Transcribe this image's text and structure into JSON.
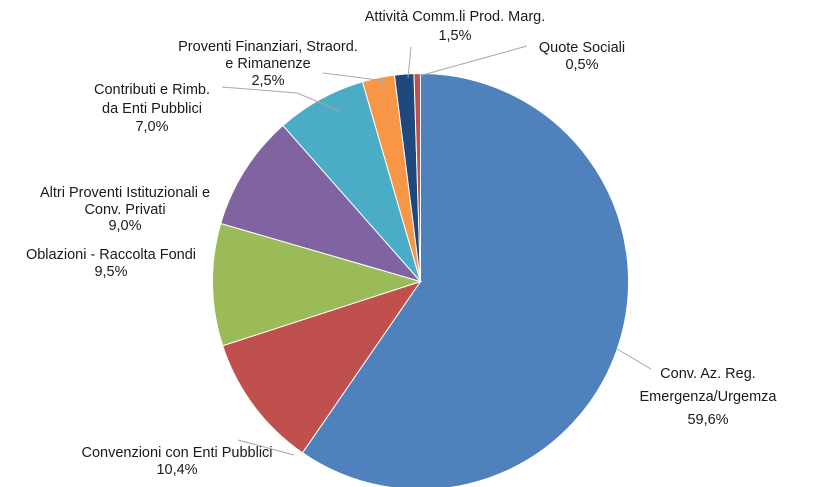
{
  "chart_data": {
    "type": "pie",
    "title": "",
    "slices": [
      {
        "label_lines": [
          "Conv. Az. Reg.",
          "Emergenza/Urgemza"
        ],
        "value": 59.6,
        "value_label": "59,6%",
        "color": "#4F81BD"
      },
      {
        "label_lines": [
          "Convenzioni con Enti Pubblici"
        ],
        "value": 10.4,
        "value_label": "10,4%",
        "color": "#C0504D"
      },
      {
        "label_lines": [
          "Oblazioni - Raccolta Fondi"
        ],
        "value": 9.5,
        "value_label": "9,5%",
        "color": "#9BBB59"
      },
      {
        "label_lines": [
          "Altri Proventi Istituzionali e",
          "Conv. Privati"
        ],
        "value": 9.0,
        "value_label": "9,0%",
        "color": "#8064A2"
      },
      {
        "label_lines": [
          "Contributi e Rimb.",
          "da Enti Pubblici"
        ],
        "value": 7.0,
        "value_label": "7,0%",
        "color": "#4BACC6"
      },
      {
        "label_lines": [
          "Proventi Finanziari, Straord.",
          "e Rimanenze"
        ],
        "value": 2.5,
        "value_label": "2,5%",
        "color": "#F79646"
      },
      {
        "label_lines": [
          "Attività Comm.li  Prod. Marg."
        ],
        "value": 1.5,
        "value_label": "1,5%",
        "color": "#1F497D"
      },
      {
        "label_lines": [
          "Quote Sociali"
        ],
        "value": 0.5,
        "value_label": "0,5%",
        "color": "#C0504D"
      }
    ]
  }
}
